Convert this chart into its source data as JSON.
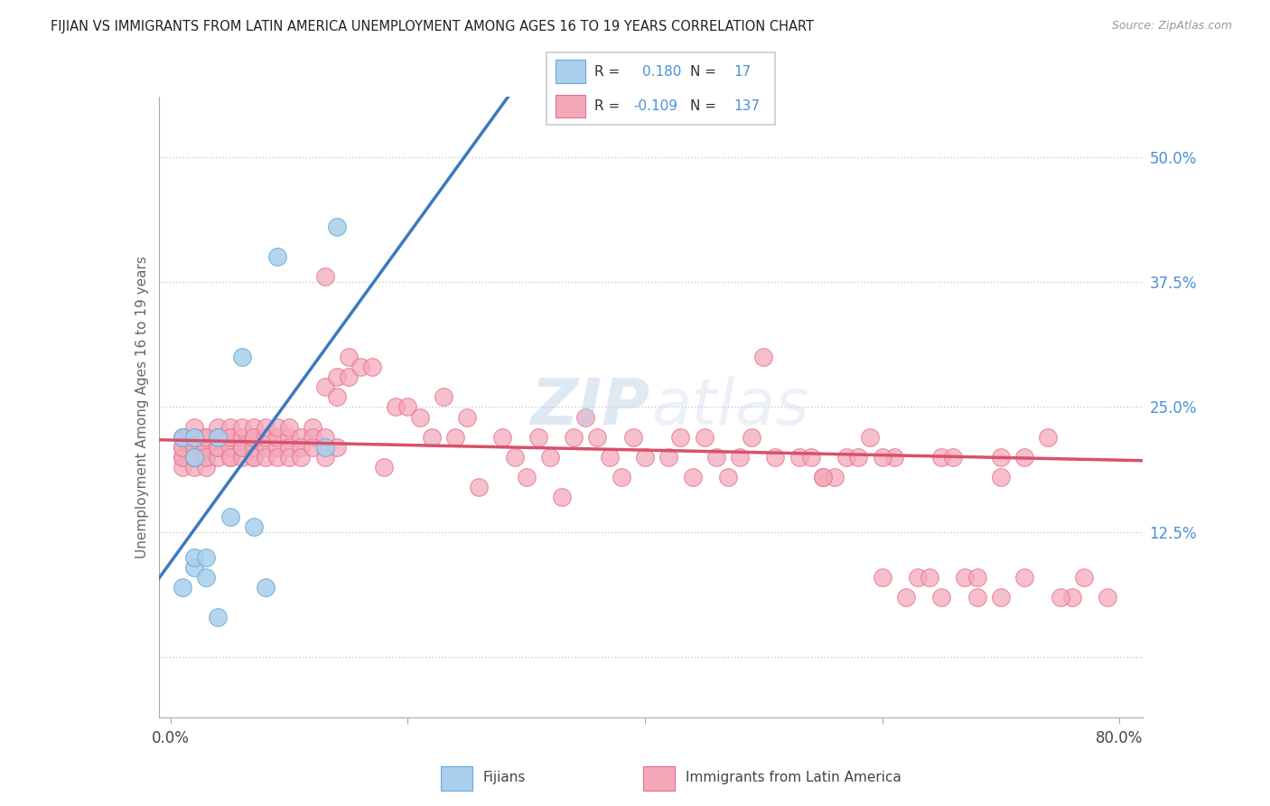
{
  "title": "FIJIAN VS IMMIGRANTS FROM LATIN AMERICA UNEMPLOYMENT AMONG AGES 16 TO 19 YEARS CORRELATION CHART",
  "source": "Source: ZipAtlas.com",
  "ylabel": "Unemployment Among Ages 16 to 19 years",
  "xlim": [
    0.0,
    0.8
  ],
  "ylim": [
    -0.06,
    0.56
  ],
  "xtick_vals": [
    0.0,
    0.2,
    0.4,
    0.6,
    0.8
  ],
  "xticklabels": [
    "0.0%",
    "",
    "",
    "",
    "80.0%"
  ],
  "ytick_vals": [
    0.0,
    0.125,
    0.25,
    0.375,
    0.5
  ],
  "yticklabels_right": [
    "",
    "12.5%",
    "25.0%",
    "37.5%",
    "50.0%"
  ],
  "fijian_color": "#aacfee",
  "fijian_edge": "#6aaad4",
  "latin_color": "#f5a8ba",
  "latin_edge": "#e07090",
  "trend_fijian_color": "#3a7abf",
  "trend_latin_color": "#d9506a",
  "R_fijian": 0.18,
  "N_fijian": 17,
  "R_latin": -0.109,
  "N_latin": 137,
  "legend_fijian": "Fijians",
  "legend_latin": "Immigrants from Latin America",
  "watermark": "ZIPatlas",
  "fijian_x": [
    0.01,
    0.01,
    0.02,
    0.02,
    0.02,
    0.02,
    0.03,
    0.03,
    0.04,
    0.04,
    0.05,
    0.06,
    0.07,
    0.08,
    0.09,
    0.13,
    0.14
  ],
  "fijian_y": [
    0.22,
    0.07,
    0.2,
    0.22,
    0.09,
    0.1,
    0.08,
    0.1,
    0.04,
    0.22,
    0.14,
    0.3,
    0.13,
    0.07,
    0.4,
    0.21,
    0.43
  ],
  "latin_x": [
    0.01,
    0.01,
    0.01,
    0.01,
    0.01,
    0.01,
    0.01,
    0.02,
    0.02,
    0.02,
    0.02,
    0.02,
    0.02,
    0.02,
    0.02,
    0.02,
    0.03,
    0.03,
    0.03,
    0.03,
    0.03,
    0.03,
    0.03,
    0.04,
    0.04,
    0.04,
    0.04,
    0.04,
    0.04,
    0.05,
    0.05,
    0.05,
    0.05,
    0.05,
    0.05,
    0.06,
    0.06,
    0.06,
    0.06,
    0.06,
    0.07,
    0.07,
    0.07,
    0.07,
    0.07,
    0.07,
    0.08,
    0.08,
    0.08,
    0.08,
    0.09,
    0.09,
    0.09,
    0.09,
    0.1,
    0.1,
    0.1,
    0.1,
    0.11,
    0.11,
    0.11,
    0.12,
    0.12,
    0.12,
    0.13,
    0.13,
    0.13,
    0.13,
    0.14,
    0.14,
    0.14,
    0.15,
    0.15,
    0.16,
    0.17,
    0.18,
    0.19,
    0.2,
    0.21,
    0.22,
    0.23,
    0.24,
    0.25,
    0.26,
    0.28,
    0.29,
    0.3,
    0.31,
    0.32,
    0.33,
    0.34,
    0.35,
    0.36,
    0.37,
    0.38,
    0.39,
    0.4,
    0.42,
    0.43,
    0.44,
    0.45,
    0.46,
    0.47,
    0.48,
    0.49,
    0.5,
    0.51,
    0.53,
    0.55,
    0.57,
    0.59,
    0.61,
    0.63,
    0.65,
    0.67,
    0.68,
    0.7,
    0.72,
    0.74,
    0.76,
    0.54,
    0.56,
    0.58,
    0.6,
    0.62,
    0.64,
    0.66,
    0.68,
    0.7,
    0.72,
    0.75,
    0.77,
    0.79,
    0.55,
    0.6,
    0.65,
    0.7
  ],
  "latin_y": [
    0.2,
    0.21,
    0.22,
    0.19,
    0.2,
    0.21,
    0.22,
    0.2,
    0.21,
    0.22,
    0.19,
    0.2,
    0.21,
    0.22,
    0.23,
    0.2,
    0.21,
    0.22,
    0.2,
    0.19,
    0.21,
    0.22,
    0.2,
    0.21,
    0.22,
    0.2,
    0.23,
    0.21,
    0.22,
    0.2,
    0.22,
    0.21,
    0.23,
    0.2,
    0.22,
    0.21,
    0.22,
    0.2,
    0.23,
    0.21,
    0.22,
    0.2,
    0.21,
    0.23,
    0.22,
    0.2,
    0.21,
    0.22,
    0.2,
    0.23,
    0.21,
    0.22,
    0.2,
    0.23,
    0.22,
    0.21,
    0.2,
    0.23,
    0.22,
    0.21,
    0.2,
    0.23,
    0.22,
    0.21,
    0.38,
    0.27,
    0.22,
    0.2,
    0.26,
    0.28,
    0.21,
    0.28,
    0.3,
    0.29,
    0.29,
    0.19,
    0.25,
    0.25,
    0.24,
    0.22,
    0.26,
    0.22,
    0.24,
    0.17,
    0.22,
    0.2,
    0.18,
    0.22,
    0.2,
    0.16,
    0.22,
    0.24,
    0.22,
    0.2,
    0.18,
    0.22,
    0.2,
    0.2,
    0.22,
    0.18,
    0.22,
    0.2,
    0.18,
    0.2,
    0.22,
    0.3,
    0.2,
    0.2,
    0.18,
    0.2,
    0.22,
    0.2,
    0.08,
    0.2,
    0.08,
    0.08,
    0.18,
    0.2,
    0.22,
    0.06,
    0.2,
    0.18,
    0.2,
    0.08,
    0.06,
    0.08,
    0.2,
    0.06,
    0.06,
    0.08,
    0.06,
    0.08,
    0.06,
    0.18,
    0.2,
    0.06,
    0.2
  ]
}
